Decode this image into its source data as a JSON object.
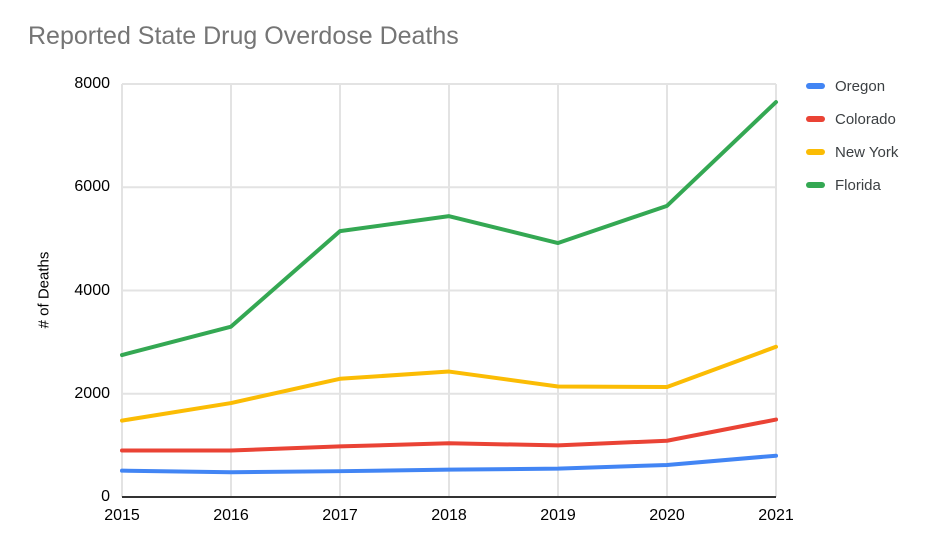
{
  "title": "Reported State Drug Overdose Deaths",
  "chart_data": {
    "type": "line",
    "title": "Reported State Drug Overdose Deaths",
    "xlabel": "",
    "ylabel": "# of Deaths",
    "x": [
      "2015",
      "2016",
      "2017",
      "2018",
      "2019",
      "2020",
      "2021"
    ],
    "series": [
      {
        "name": "Oregon",
        "color": "#4285F4",
        "values": [
          510,
          480,
          500,
          530,
          550,
          620,
          800
        ]
      },
      {
        "name": "Colorado",
        "color": "#EA4335",
        "values": [
          900,
          900,
          980,
          1040,
          1000,
          1090,
          1500
        ]
      },
      {
        "name": "New York",
        "color": "#FBBC04",
        "values": [
          1480,
          1820,
          2290,
          2430,
          2140,
          2130,
          2910
        ]
      },
      {
        "name": "Florida",
        "color": "#34A853",
        "values": [
          2750,
          3300,
          5150,
          5440,
          4920,
          5640,
          7650
        ]
      }
    ],
    "ylim": [
      0,
      8000
    ],
    "yticks": [
      0,
      2000,
      4000,
      6000,
      8000
    ],
    "grid": true,
    "legend_position": "right"
  },
  "style_colors": {
    "title_text": "#757575",
    "axis_text": "#000000",
    "legend_text": "#3c4043",
    "gridline": "#e3e3e3",
    "axis_line": "#333333",
    "background": "#ffffff"
  }
}
